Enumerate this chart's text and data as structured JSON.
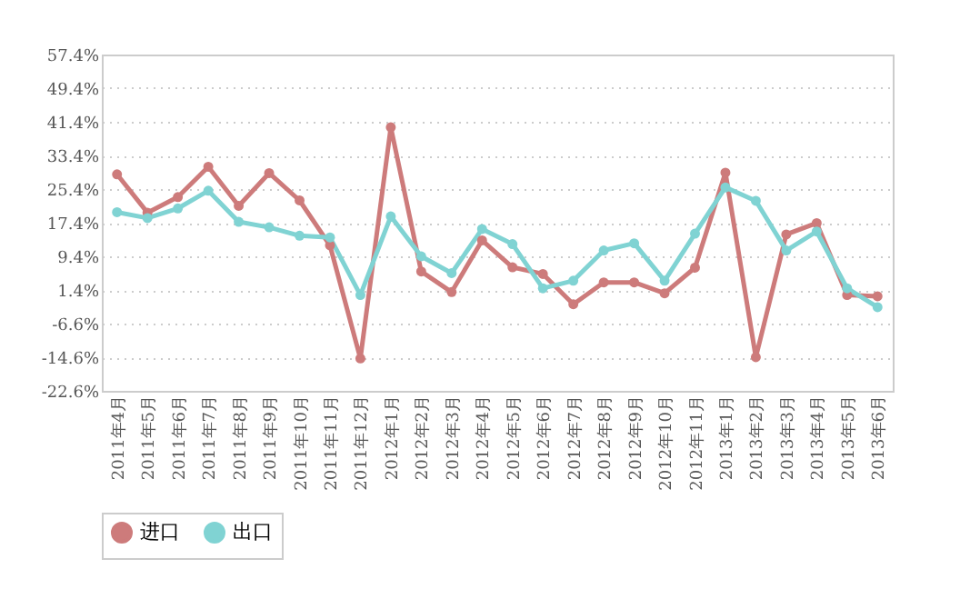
{
  "chart_data": {
    "type": "line",
    "categories": [
      "2011年4月",
      "2011年5月",
      "2011年6月",
      "2011年7月",
      "2011年8月",
      "2011年9月",
      "2011年10月",
      "2011年11月",
      "2011年12月",
      "2012年1月",
      "2012年2月",
      "2012年3月",
      "2012年4月",
      "2012年5月",
      "2012年6月",
      "2012年7月",
      "2012年8月",
      "2012年9月",
      "2012年10月",
      "2012年11月",
      "2013年1月",
      "2013年2月",
      "2013年3月",
      "2013年4月",
      "2013年5月",
      "2013年6月"
    ],
    "series": [
      {
        "name": "进口",
        "color": "#cd7b7b",
        "values": [
          28.9,
          19.8,
          23.5,
          30.7,
          21.4,
          29.2,
          22.7,
          12.0,
          -14.9,
          40.1,
          5.8,
          0.9,
          13.2,
          6.8,
          5.2,
          -2.0,
          3.2,
          3.2,
          0.6,
          6.7,
          29.3,
          -14.6,
          14.6,
          17.3,
          0.2,
          -0.1
        ]
      },
      {
        "name": "出口",
        "color": "#80d3d3",
        "values": [
          19.9,
          18.5,
          20.8,
          25.0,
          17.6,
          16.3,
          14.3,
          13.9,
          0.2,
          18.9,
          9.4,
          5.4,
          15.9,
          12.3,
          1.8,
          3.6,
          10.8,
          12.5,
          3.6,
          14.8,
          25.8,
          22.6,
          10.8,
          15.3,
          1.8,
          -2.7
        ]
      }
    ],
    "ylim": [
      -22.6,
      57.4
    ],
    "yticks": [
      {
        "value": -22.6,
        "label": "-22.6%"
      },
      {
        "value": -14.6,
        "label": "-14.6%"
      },
      {
        "value": -6.6,
        "label": "-6.6%"
      },
      {
        "value": 1.4,
        "label": "1.4%"
      },
      {
        "value": 9.4,
        "label": "9.4%"
      },
      {
        "value": 17.4,
        "label": "17.4%"
      },
      {
        "value": 25.4,
        "label": "25.4%"
      },
      {
        "value": 33.4,
        "label": "33.4%"
      },
      {
        "value": 41.4,
        "label": "41.4%"
      },
      {
        "value": 49.4,
        "label": "49.4%"
      },
      {
        "value": 57.4,
        "label": "57.4%"
      }
    ],
    "grid": "y",
    "legend": "bottom",
    "marker": "circle",
    "line_style": "solid"
  }
}
